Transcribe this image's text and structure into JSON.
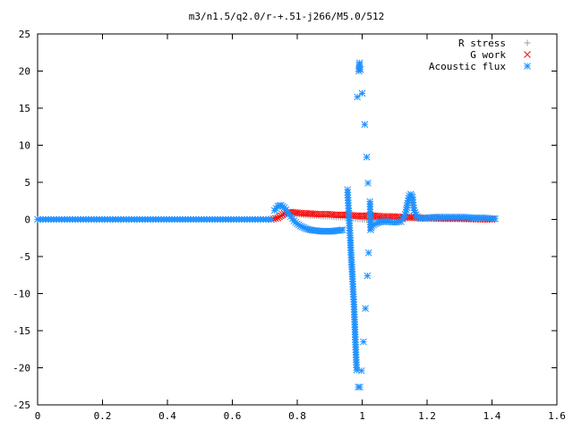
{
  "chart_data": {
    "type": "scatter",
    "title": "m3/n1.5/q2.0/r-+.51-j266/M5.0/512",
    "xlabel": "",
    "ylabel": "",
    "xlim": [
      0,
      1.6
    ],
    "ylim": [
      -25,
      25
    ],
    "x_ticks": [
      "0",
      "0.2",
      "0.4",
      "0.6",
      "0.8",
      "1",
      "1.2",
      "1.4",
      "1.6"
    ],
    "y_ticks": [
      "25",
      "20",
      "15",
      "10",
      "5",
      "0",
      "-5",
      "-10",
      "-15",
      "-20",
      "-25"
    ],
    "grid": false,
    "legend_position": "top-right",
    "series": [
      {
        "name": "R stress",
        "marker": "+",
        "color": "#a0a0a0",
        "points": [
          [
            0.72,
            0.0
          ],
          [
            0.74,
            0.3
          ],
          [
            0.76,
            0.6
          ],
          [
            0.78,
            0.8
          ],
          [
            0.8,
            0.7
          ],
          [
            0.82,
            0.6
          ],
          [
            0.84,
            0.5
          ],
          [
            0.86,
            0.5
          ],
          [
            0.88,
            0.4
          ],
          [
            0.9,
            0.4
          ],
          [
            0.92,
            0.3
          ],
          [
            0.94,
            0.3
          ],
          [
            0.96,
            0.2
          ],
          [
            0.98,
            0.1
          ],
          [
            1.0,
            0.0
          ],
          [
            1.02,
            -0.1
          ],
          [
            1.04,
            0.0
          ],
          [
            1.06,
            0.1
          ],
          [
            1.08,
            0.1
          ],
          [
            1.1,
            0.1
          ],
          [
            1.12,
            0.1
          ],
          [
            1.14,
            0.1
          ],
          [
            1.16,
            0.1
          ],
          [
            1.18,
            0.1
          ],
          [
            1.2,
            0.1
          ],
          [
            1.25,
            0.1
          ],
          [
            1.3,
            0.1
          ],
          [
            1.35,
            0.05
          ],
          [
            1.4,
            0.0
          ]
        ]
      },
      {
        "name": "G work",
        "marker": "x",
        "color": "#ff0000",
        "points": [
          [
            0.72,
            0.0
          ],
          [
            0.74,
            0.2
          ],
          [
            0.75,
            0.5
          ],
          [
            0.76,
            0.8
          ],
          [
            0.78,
            1.0
          ],
          [
            0.8,
            0.9
          ],
          [
            0.82,
            0.8
          ],
          [
            0.84,
            0.8
          ],
          [
            0.86,
            0.7
          ],
          [
            0.88,
            0.7
          ],
          [
            0.9,
            0.7
          ],
          [
            0.92,
            0.6
          ],
          [
            0.94,
            0.6
          ],
          [
            0.96,
            0.6
          ],
          [
            0.98,
            0.5
          ],
          [
            1.0,
            0.5
          ],
          [
            1.02,
            0.5
          ],
          [
            1.04,
            0.5
          ],
          [
            1.06,
            0.4
          ],
          [
            1.08,
            0.4
          ],
          [
            1.1,
            0.4
          ],
          [
            1.12,
            0.3
          ],
          [
            1.14,
            0.3
          ],
          [
            1.16,
            0.3
          ],
          [
            1.18,
            0.2
          ],
          [
            1.2,
            0.2
          ],
          [
            1.25,
            0.1
          ],
          [
            1.3,
            0.1
          ],
          [
            1.35,
            0.05
          ],
          [
            1.4,
            0.0
          ]
        ]
      },
      {
        "name": "Acoustic flux",
        "marker": "*",
        "color": "#1e90ff",
        "points": [
          [
            0.73,
            1.2
          ],
          [
            0.74,
            1.8
          ],
          [
            0.75,
            1.9
          ],
          [
            0.76,
            1.6
          ],
          [
            0.77,
            1.0
          ],
          [
            0.78,
            0.4
          ],
          [
            0.79,
            -0.2
          ],
          [
            0.8,
            -0.6
          ],
          [
            0.81,
            -0.9
          ],
          [
            0.82,
            -1.1
          ],
          [
            0.83,
            -1.3
          ],
          [
            0.84,
            -1.4
          ],
          [
            0.85,
            -1.5
          ],
          [
            0.86,
            -1.5
          ],
          [
            0.87,
            -1.6
          ],
          [
            0.88,
            -1.6
          ],
          [
            0.89,
            -1.6
          ],
          [
            0.9,
            -1.6
          ],
          [
            0.91,
            -1.6
          ],
          [
            0.92,
            -1.5
          ],
          [
            0.93,
            -1.5
          ],
          [
            0.94,
            -1.4
          ],
          [
            0.955,
            4.0
          ],
          [
            0.958,
            1.5
          ],
          [
            0.962,
            -1.5
          ],
          [
            0.966,
            -4.8
          ],
          [
            0.97,
            -7.7
          ],
          [
            0.975,
            -11.8
          ],
          [
            0.979,
            -16.2
          ],
          [
            0.983,
            -20.3
          ],
          [
            0.985,
            16.5
          ],
          [
            0.988,
            -22.6
          ],
          [
            0.99,
            20.0
          ],
          [
            0.992,
            21.1
          ],
          [
            0.993,
            -22.6
          ],
          [
            0.995,
            20.2
          ],
          [
            0.998,
            -20.4
          ],
          [
            1.0,
            17.0
          ],
          [
            1.004,
            -16.5
          ],
          [
            1.008,
            12.8
          ],
          [
            1.01,
            -12.0
          ],
          [
            1.014,
            8.4
          ],
          [
            1.016,
            -7.6
          ],
          [
            1.018,
            4.9
          ],
          [
            1.02,
            -4.5
          ],
          [
            1.024,
            2.4
          ],
          [
            1.026,
            -1.4
          ],
          [
            1.03,
            -0.9
          ],
          [
            1.04,
            -0.6
          ],
          [
            1.05,
            -0.4
          ],
          [
            1.06,
            -0.3
          ],
          [
            1.08,
            -0.3
          ],
          [
            1.1,
            -0.4
          ],
          [
            1.12,
            -0.3
          ],
          [
            1.13,
            0.4
          ],
          [
            1.135,
            1.0
          ],
          [
            1.14,
            2.2
          ],
          [
            1.145,
            3.2
          ],
          [
            1.15,
            3.4
          ],
          [
            1.155,
            3.0
          ],
          [
            1.16,
            1.2
          ],
          [
            1.17,
            0.4
          ],
          [
            1.18,
            0.1
          ],
          [
            1.2,
            0.2
          ],
          [
            1.22,
            0.3
          ],
          [
            1.24,
            0.3
          ],
          [
            1.26,
            0.3
          ],
          [
            1.28,
            0.3
          ],
          [
            1.3,
            0.3
          ],
          [
            1.32,
            0.3
          ],
          [
            1.34,
            0.2
          ],
          [
            1.36,
            0.2
          ],
          [
            1.38,
            0.2
          ],
          [
            1.4,
            0.1
          ],
          [
            1.41,
            0.1
          ]
        ],
        "baseline": {
          "y": 0.0,
          "x_from": 0.0,
          "x_to": 0.72
        }
      }
    ]
  }
}
